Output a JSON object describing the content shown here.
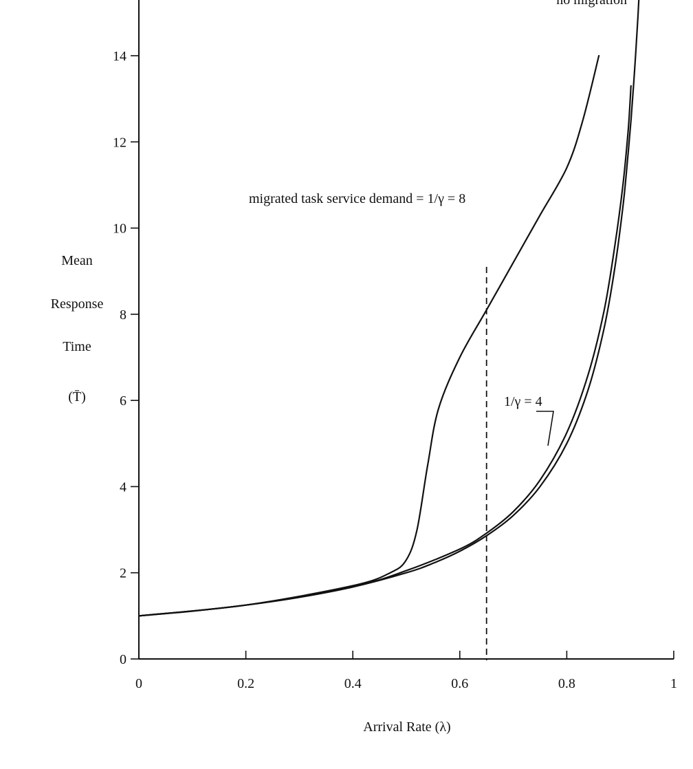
{
  "chart_data": {
    "type": "line",
    "xlabel": "Arrival Rate (λ)",
    "ylabel_lines": [
      "Mean",
      "Response",
      "Time",
      "(T̄)"
    ],
    "xlim": [
      0,
      1
    ],
    "ylim": [
      0,
      15
    ],
    "x_ticks": [
      0,
      0.2,
      0.4,
      0.6,
      0.8,
      1
    ],
    "x_tick_labels": [
      "0",
      "0.2",
      "0.4",
      "0.6",
      "0.8",
      "1"
    ],
    "y_ticks": [
      0,
      2,
      4,
      6,
      8,
      10,
      12,
      14
    ],
    "y_tick_labels": [
      "0",
      "2",
      "4",
      "6",
      "8",
      "10",
      "12",
      "14"
    ],
    "grid": false,
    "reference_line": {
      "x": 0.65,
      "y_range": [
        0,
        9.1
      ],
      "style": "dashed"
    },
    "series": [
      {
        "name": "no migration",
        "points": [
          [
            0,
            1.0
          ],
          [
            0.1,
            1.11
          ],
          [
            0.2,
            1.25
          ],
          [
            0.3,
            1.43
          ],
          [
            0.4,
            1.67
          ],
          [
            0.5,
            2.0
          ],
          [
            0.55,
            2.22
          ],
          [
            0.6,
            2.5
          ],
          [
            0.65,
            2.86
          ],
          [
            0.7,
            3.33
          ],
          [
            0.75,
            4.0
          ],
          [
            0.8,
            5.0
          ],
          [
            0.84,
            6.25
          ],
          [
            0.87,
            7.69
          ],
          [
            0.89,
            9.09
          ],
          [
            0.905,
            10.5
          ],
          [
            0.913,
            11.5
          ],
          [
            0.92,
            12.5
          ],
          [
            0.927,
            13.7
          ],
          [
            0.933,
            14.9
          ],
          [
            0.936,
            15.6
          ]
        ]
      },
      {
        "name": "1/γ = 8",
        "points": [
          [
            0,
            1.0
          ],
          [
            0.2,
            1.25
          ],
          [
            0.4,
            1.7
          ],
          [
            0.47,
            2.0
          ],
          [
            0.5,
            2.3
          ],
          [
            0.52,
            3.0
          ],
          [
            0.54,
            4.5
          ],
          [
            0.56,
            5.8
          ],
          [
            0.6,
            7.0
          ],
          [
            0.65,
            8.1
          ],
          [
            0.7,
            9.2
          ],
          [
            0.75,
            10.3
          ],
          [
            0.8,
            11.4
          ],
          [
            0.83,
            12.5
          ],
          [
            0.86,
            14.0
          ]
        ]
      },
      {
        "name": "1/γ = 4",
        "points": [
          [
            0,
            1.0
          ],
          [
            0.2,
            1.25
          ],
          [
            0.4,
            1.68
          ],
          [
            0.5,
            2.05
          ],
          [
            0.6,
            2.55
          ],
          [
            0.65,
            2.92
          ],
          [
            0.7,
            3.42
          ],
          [
            0.75,
            4.15
          ],
          [
            0.8,
            5.25
          ],
          [
            0.84,
            6.6
          ],
          [
            0.87,
            8.1
          ],
          [
            0.89,
            9.6
          ],
          [
            0.905,
            11.0
          ],
          [
            0.915,
            12.3
          ],
          [
            0.92,
            13.3
          ]
        ]
      }
    ],
    "annotations": [
      {
        "text": "migrated task service demand = 1/γ = 8"
      },
      {
        "text": "1/γ = 4"
      },
      {
        "text": "no migration"
      }
    ]
  }
}
